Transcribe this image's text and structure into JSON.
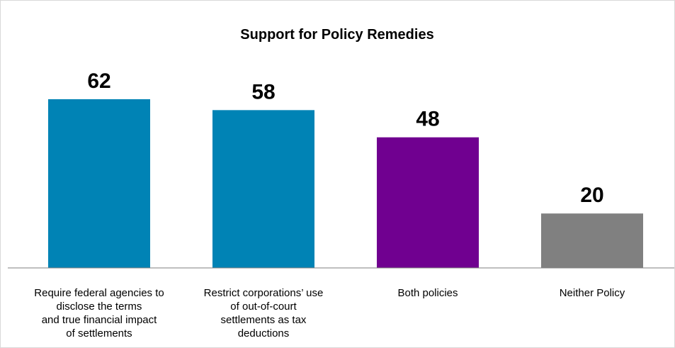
{
  "chart_data": {
    "type": "bar",
    "title": "Support for Policy Remedies",
    "xlabel": "",
    "ylabel": "",
    "ylim": [
      0,
      70
    ],
    "grid": false,
    "legend": "none",
    "categories": [
      [
        "Require federal agencies to",
        "disclose the terms",
        "and true financial impact",
        "of settlements"
      ],
      [
        "Restrict corporations’ use",
        "of out-of-court",
        "settlements as tax",
        "deductions"
      ],
      [
        "Both policies"
      ],
      [
        "Neither Policy"
      ]
    ],
    "values": [
      62,
      58,
      48,
      20
    ],
    "data_labels": [
      "62",
      "58",
      "48",
      "20"
    ],
    "colors": [
      "#0083b5",
      "#0083b5",
      "#700090",
      "#808080"
    ]
  }
}
